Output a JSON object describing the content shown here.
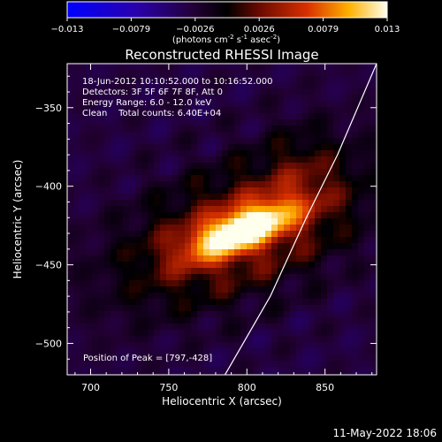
{
  "chart_data": {
    "type": "heatmap",
    "title": "Reconstructed RHESSI Image",
    "xlabel": "Heliocentric X (arcsec)",
    "ylabel": "Heliocentric Y (arcsec)",
    "xlim": [
      685,
      883
    ],
    "ylim": [
      -520,
      -322
    ],
    "x_ticks": [
      700,
      750,
      800,
      850
    ],
    "y_ticks": [
      -350,
      -400,
      -450,
      -500
    ],
    "colorbar": {
      "min": -0.013,
      "max": 0.013,
      "tick_labels": [
        "-0.013",
        "-0.0079",
        "-0.0026",
        "0.0026",
        "0.0079",
        "0.013"
      ],
      "unit_label": "(photons cm",
      "unit_sup1": "-2",
      "unit_mid": " s",
      "unit_sup2": "-1",
      "unit_mid2": " asec",
      "unit_sup3": "-2",
      "unit_end": ")"
    },
    "info": {
      "line1": "18-Jun-2012 10:10:52.000 to 10:16:52.000",
      "line2": "Detectors: 3F 5F 6F 7F 8F, Att 0",
      "line3": "Energy Range: 6.0 - 12.0 keV",
      "line4": "Clean    Total counts: 6.40E+04"
    },
    "peak_label": "Position of Peak = [797,-428]",
    "peak": {
      "x": 797,
      "y": -428,
      "value": 0.013
    },
    "limb_line": [
      [
        786,
        -520
      ],
      [
        815,
        -470
      ],
      [
        838,
        -420
      ],
      [
        858,
        -380
      ],
      [
        883,
        -322
      ]
    ],
    "background_level": -0.003
  },
  "footer": {
    "timestamp": "11-May-2022 18:06"
  }
}
